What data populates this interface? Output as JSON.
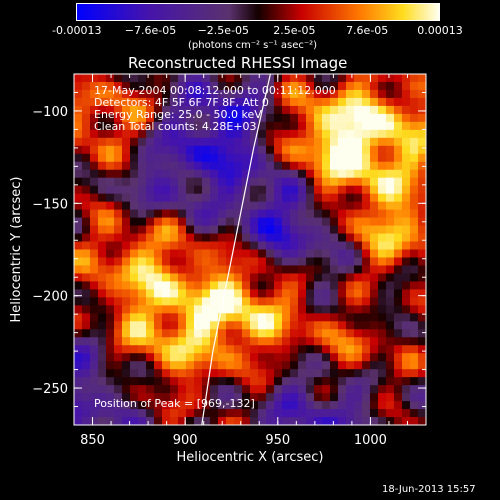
{
  "chart_data": {
    "type": "heatmap",
    "title": "Reconstructed RHESSI Image",
    "xlabel": "Heliocentric X (arcsec)",
    "ylabel": "Heliocentric Y (arcsec)",
    "xlim": [
      840,
      1030
    ],
    "ylim": [
      -270,
      -80
    ],
    "x_ticks": [
      850,
      900,
      950,
      1000
    ],
    "y_ticks": [
      -100,
      -150,
      -200,
      -250
    ],
    "colorbar": {
      "ticks": [
        "-0.00013",
        "−7.6e-05",
        "−2.5e-05",
        "2.5e-05",
        "7.6e-05",
        "0.00013"
      ],
      "label": "(photons cm⁻² s⁻¹ asec⁻²)",
      "range": [
        -0.00013,
        0.00013
      ]
    },
    "annotations": {
      "time": "17-May-2004 00:08:12.000 to 00:11:12.000",
      "detectors": "Detectors: 4F 5F 6F 7F 8F, Att 0",
      "energy": "Energy Range: 25.0 - 50.0 keV",
      "method": "Clean    Total counts: 4.28E+03",
      "peak": "Position of Peak = [969,-132]"
    },
    "limb": [
      [
        946,
        -80
      ],
      [
        937,
        -120
      ],
      [
        927,
        -170
      ],
      [
        915,
        -230
      ],
      [
        909,
        -270
      ]
    ],
    "hot_regions": [
      {
        "x": 978,
        "y": -118,
        "value": 0.00012
      },
      {
        "x": 1010,
        "y": -170,
        "value": 0.0001
      },
      {
        "x": 930,
        "y": -205,
        "value": 0.00011
      },
      {
        "x": 875,
        "y": -175,
        "value": 9e-05
      },
      {
        "x": 885,
        "y": -225,
        "value": 8e-05
      },
      {
        "x": 860,
        "y": -110,
        "value": 8e-05
      },
      {
        "x": 990,
        "y": -225,
        "value": 9e-05
      },
      {
        "x": 1015,
        "y": -110,
        "value": 7e-05
      }
    ],
    "cold_regions": [
      {
        "x": 920,
        "y": -110,
        "value": -9e-05
      },
      {
        "x": 955,
        "y": -160,
        "value": -0.0001
      },
      {
        "x": 880,
        "y": -140,
        "value": -8e-05
      },
      {
        "x": 975,
        "y": -260,
        "value": -8e-05
      },
      {
        "x": 1000,
        "y": -200,
        "value": -7e-05
      },
      {
        "x": 850,
        "y": -250,
        "value": -7e-05
      }
    ]
  },
  "footer": {
    "date": "18-Jun-2013 15:57"
  }
}
